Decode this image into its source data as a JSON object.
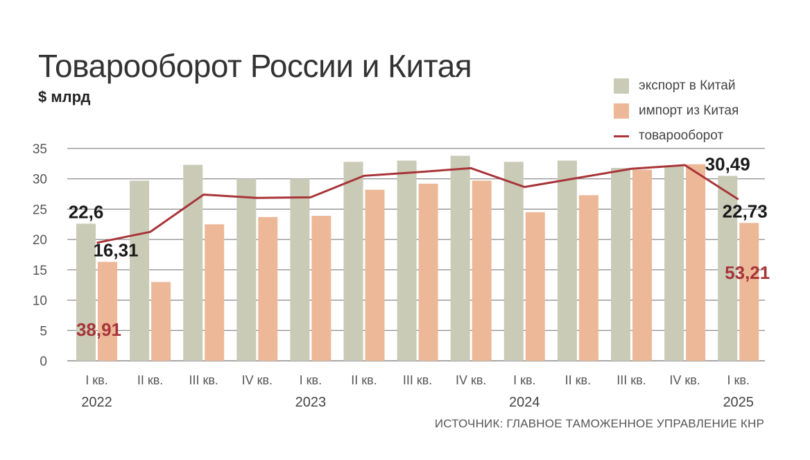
{
  "chart_data": {
    "type": "bar",
    "title": "Товарооборот России и Китая",
    "subtitle": "$ млрд",
    "source": "ИСТОЧНИК: ГЛАВНОЕ ТАМОЖЕННОЕ УПРАВЛЕНИЕ КНР",
    "categories": [
      "I кв.",
      "II кв.",
      "III кв.",
      "IV кв.",
      "I кв.",
      "II кв.",
      "III кв.",
      "IV кв.",
      "I кв.",
      "II кв.",
      "III кв.",
      "IV кв.",
      "I кв."
    ],
    "years": [
      {
        "label": "2022",
        "index": 0
      },
      {
        "label": "2023",
        "index": 4
      },
      {
        "label": "2024",
        "index": 8
      },
      {
        "label": "2025",
        "index": 12
      }
    ],
    "y_ticks": [
      "0",
      "5",
      "10",
      "15",
      "20",
      "25",
      "30",
      "35"
    ],
    "ylim": [
      0,
      35
    ],
    "grid": true,
    "legend_position": "top-right",
    "series": [
      {
        "name": "экспорт в Китай",
        "type": "bar",
        "color": "#c9cbb7",
        "values": [
          22.6,
          29.7,
          32.3,
          30.0,
          30.0,
          32.8,
          33.0,
          33.8,
          32.8,
          33.0,
          31.8,
          32.1,
          30.49
        ]
      },
      {
        "name": "импорт из Китая",
        "type": "bar",
        "color": "#edb898",
        "values": [
          16.31,
          13.0,
          22.5,
          23.7,
          23.9,
          28.2,
          29.2,
          29.7,
          24.5,
          27.3,
          31.5,
          32.4,
          22.73
        ]
      },
      {
        "name": "товарооборот",
        "type": "line",
        "color": "#a83438",
        "values": [
          38.91,
          42.5,
          54.8,
          53.7,
          53.9,
          61.0,
          62.2,
          63.5,
          57.3,
          60.3,
          63.3,
          64.5,
          53.21
        ]
      }
    ],
    "data_labels": [
      {
        "text": "22,6",
        "series": 0,
        "index": 0,
        "color": "#1a1a1a"
      },
      {
        "text": "16,31",
        "series": 1,
        "index": 0,
        "color": "#1a1a1a"
      },
      {
        "text": "38,91",
        "series": 2,
        "index": 0,
        "color": "#a83438"
      },
      {
        "text": "30,49",
        "series": 0,
        "index": 12,
        "color": "#1a1a1a"
      },
      {
        "text": "22,73",
        "series": 1,
        "index": 12,
        "color": "#1a1a1a"
      },
      {
        "text": "53,21",
        "series": 2,
        "index": 12,
        "color": "#a83438"
      }
    ]
  }
}
